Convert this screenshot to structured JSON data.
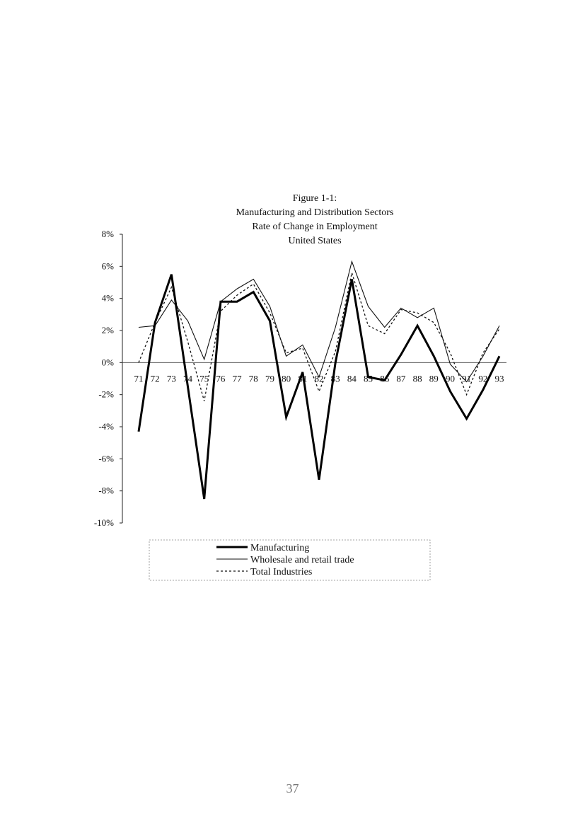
{
  "chart_data": {
    "type": "line",
    "title_lines": [
      "Figure 1-1:",
      "Manufacturing and Distribution Sectors",
      "Rate of Change in Employment",
      "United States"
    ],
    "categories": [
      "71",
      "72",
      "73",
      "74",
      "75",
      "76",
      "77",
      "78",
      "79",
      "80",
      "81",
      "82",
      "83",
      "84",
      "85",
      "86",
      "87",
      "88",
      "89",
      "90",
      "91",
      "92",
      "93"
    ],
    "ylim": [
      -10,
      8
    ],
    "yticks": [
      8,
      6,
      4,
      2,
      0,
      -2,
      -4,
      -6,
      -8,
      -10
    ],
    "ytick_labels": [
      "8%",
      "6%",
      "4%",
      "2%",
      "0%",
      "-2%",
      "-4%",
      "-6%",
      "-8%",
      "-10%"
    ],
    "xlabel": "",
    "ylabel": "",
    "grid": false,
    "legend_position": "bottom",
    "series": [
      {
        "name": "Manufacturing",
        "style": "thick-solid",
        "values": [
          -4.3,
          2.5,
          5.5,
          -1.5,
          -8.5,
          3.8,
          3.8,
          4.4,
          2.6,
          -3.4,
          -0.6,
          -7.3,
          0.0,
          5.2,
          -0.9,
          -1.1,
          0.5,
          2.3,
          0.4,
          -1.8,
          -3.5,
          -1.7,
          0.4
        ]
      },
      {
        "name": "Wholesale and retail trade",
        "style": "thin-solid",
        "values": [
          2.2,
          2.3,
          3.9,
          2.6,
          0.2,
          3.8,
          4.6,
          5.2,
          3.5,
          0.4,
          1.1,
          -0.9,
          2.2,
          6.3,
          3.5,
          2.2,
          3.4,
          2.8,
          3.4,
          -0.1,
          -1.2,
          0.4,
          2.3
        ]
      },
      {
        "name": "Total Industries",
        "style": "dotted",
        "values": [
          0.0,
          2.5,
          4.7,
          1.3,
          -2.4,
          3.2,
          4.2,
          4.9,
          3.1,
          0.6,
          0.9,
          -1.8,
          0.7,
          5.6,
          2.3,
          1.8,
          3.3,
          3.1,
          2.5,
          0.6,
          -2.0,
          0.6,
          2.1
        ]
      }
    ]
  },
  "page_number": "37"
}
